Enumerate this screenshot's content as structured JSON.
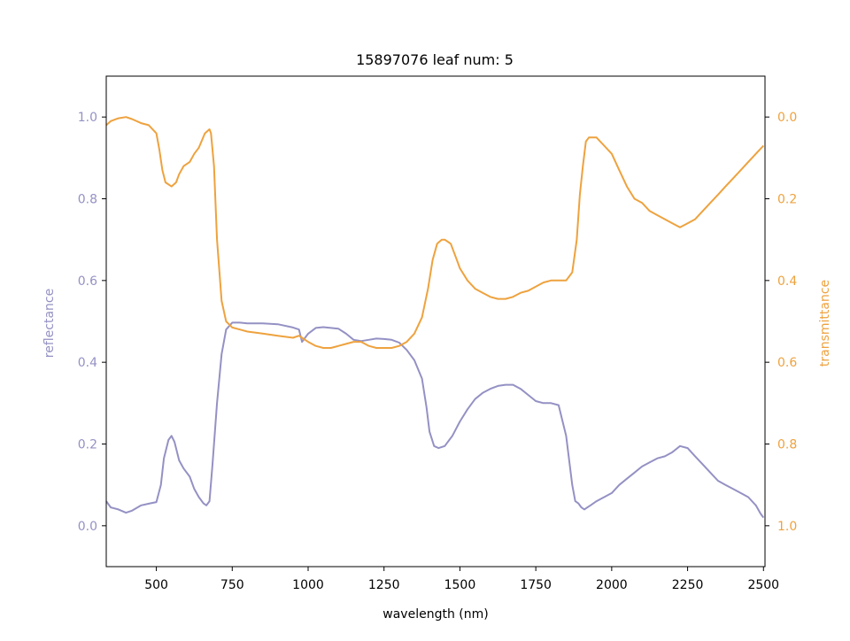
{
  "chart_data": {
    "type": "line",
    "title": "15897076 leaf num: 5",
    "xlabel": "wavelength (nm)",
    "ylabel_left": "reflectance",
    "ylabel_right": "transmittance",
    "xlim": [
      335,
      2505
    ],
    "ylim_left": [
      -0.1,
      1.1
    ],
    "ylim_right": [
      1.1,
      -0.1
    ],
    "x_ticks": [
      500,
      750,
      1000,
      1250,
      1500,
      1750,
      2000,
      2250,
      2500
    ],
    "x_tick_labels": [
      "500",
      "750",
      "1000",
      "1250",
      "1500",
      "1750",
      "2000",
      "2250",
      "2500"
    ],
    "y_left_ticks": [
      0.0,
      0.2,
      0.4,
      0.6,
      0.8,
      1.0
    ],
    "y_left_tick_labels": [
      "0.0",
      "0.2",
      "0.4",
      "0.6",
      "0.8",
      "1.0"
    ],
    "y_right_ticks": [
      0.0,
      0.2,
      0.4,
      0.6,
      0.8,
      1.0
    ],
    "y_right_tick_labels": [
      "0.0",
      "0.2",
      "0.4",
      "0.6",
      "0.8",
      "1.0"
    ],
    "grid": false,
    "colors": {
      "reflectance": "#9491c4",
      "transmittance": "#eea23e"
    },
    "series": [
      {
        "axis": "left",
        "color": "#9491c4",
        "x": [
          335,
          350,
          375,
          400,
          420,
          450,
          475,
          500,
          515,
          525,
          540,
          550,
          560,
          575,
          590,
          610,
          625,
          640,
          655,
          665,
          675,
          685,
          700,
          715,
          730,
          750,
          775,
          800,
          850,
          900,
          950,
          970,
          980,
          1000,
          1025,
          1050,
          1075,
          1100,
          1125,
          1150,
          1175,
          1200,
          1225,
          1250,
          1275,
          1300,
          1325,
          1350,
          1375,
          1390,
          1400,
          1415,
          1430,
          1450,
          1475,
          1500,
          1525,
          1550,
          1575,
          1600,
          1625,
          1650,
          1675,
          1700,
          1725,
          1750,
          1775,
          1800,
          1825,
          1850,
          1870,
          1880,
          1890,
          1900,
          1910,
          1920,
          1930,
          1950,
          1975,
          2000,
          2025,
          2050,
          2075,
          2100,
          2125,
          2150,
          2175,
          2200,
          2225,
          2250,
          2275,
          2300,
          2325,
          2350,
          2375,
          2400,
          2425,
          2450,
          2475,
          2490,
          2500
        ],
        "y": [
          0.06,
          0.045,
          0.04,
          0.032,
          0.037,
          0.05,
          0.054,
          0.058,
          0.1,
          0.165,
          0.21,
          0.22,
          0.205,
          0.16,
          0.14,
          0.12,
          0.09,
          0.07,
          0.055,
          0.05,
          0.06,
          0.15,
          0.3,
          0.42,
          0.48,
          0.497,
          0.497,
          0.495,
          0.495,
          0.493,
          0.485,
          0.48,
          0.45,
          0.47,
          0.484,
          0.486,
          0.484,
          0.482,
          0.47,
          0.455,
          0.452,
          0.455,
          0.458,
          0.457,
          0.455,
          0.448,
          0.43,
          0.405,
          0.36,
          0.29,
          0.23,
          0.195,
          0.19,
          0.195,
          0.22,
          0.255,
          0.285,
          0.31,
          0.325,
          0.335,
          0.342,
          0.345,
          0.345,
          0.335,
          0.32,
          0.305,
          0.3,
          0.3,
          0.295,
          0.22,
          0.1,
          0.06,
          0.055,
          0.045,
          0.04,
          0.045,
          0.05,
          0.06,
          0.07,
          0.08,
          0.1,
          0.115,
          0.13,
          0.145,
          0.155,
          0.165,
          0.17,
          0.18,
          0.195,
          0.19,
          0.17,
          0.15,
          0.13,
          0.11,
          0.1,
          0.09,
          0.08,
          0.07,
          0.05,
          0.03,
          0.02
        ]
      },
      {
        "axis": "right",
        "color": "#eea23e",
        "x": [
          335,
          350,
          375,
          400,
          420,
          450,
          475,
          500,
          510,
          520,
          530,
          550,
          565,
          575,
          590,
          610,
          625,
          640,
          660,
          675,
          680,
          690,
          700,
          715,
          730,
          750,
          775,
          800,
          850,
          900,
          950,
          970,
          980,
          1000,
          1025,
          1050,
          1075,
          1100,
          1125,
          1150,
          1175,
          1200,
          1225,
          1250,
          1275,
          1300,
          1325,
          1350,
          1375,
          1395,
          1410,
          1425,
          1440,
          1450,
          1470,
          1490,
          1500,
          1525,
          1550,
          1575,
          1600,
          1625,
          1650,
          1675,
          1700,
          1725,
          1750,
          1775,
          1800,
          1825,
          1850,
          1870,
          1885,
          1895,
          1905,
          1915,
          1925,
          1950,
          1975,
          2000,
          2025,
          2050,
          2075,
          2100,
          2125,
          2150,
          2175,
          2200,
          2225,
          2250,
          2275,
          2300,
          2325,
          2350,
          2375,
          2400,
          2425,
          2450,
          2475,
          2500
        ],
        "y": [
          0.02,
          0.01,
          0.003,
          0.0,
          0.005,
          0.015,
          0.02,
          0.04,
          0.08,
          0.13,
          0.16,
          0.17,
          0.16,
          0.14,
          0.12,
          0.11,
          0.09,
          0.075,
          0.04,
          0.03,
          0.04,
          0.12,
          0.3,
          0.45,
          0.5,
          0.515,
          0.52,
          0.525,
          0.53,
          0.535,
          0.54,
          0.535,
          0.54,
          0.55,
          0.56,
          0.565,
          0.565,
          0.56,
          0.555,
          0.55,
          0.55,
          0.56,
          0.565,
          0.565,
          0.565,
          0.56,
          0.55,
          0.53,
          0.49,
          0.42,
          0.35,
          0.31,
          0.3,
          0.3,
          0.31,
          0.35,
          0.37,
          0.4,
          0.42,
          0.43,
          0.44,
          0.445,
          0.445,
          0.44,
          0.43,
          0.425,
          0.415,
          0.405,
          0.4,
          0.4,
          0.4,
          0.38,
          0.3,
          0.19,
          0.12,
          0.06,
          0.05,
          0.05,
          0.07,
          0.09,
          0.13,
          0.17,
          0.2,
          0.21,
          0.23,
          0.24,
          0.25,
          0.26,
          0.27,
          0.26,
          0.25,
          0.23,
          0.21,
          0.19,
          0.17,
          0.15,
          0.13,
          0.11,
          0.09,
          0.07
        ]
      }
    ]
  }
}
